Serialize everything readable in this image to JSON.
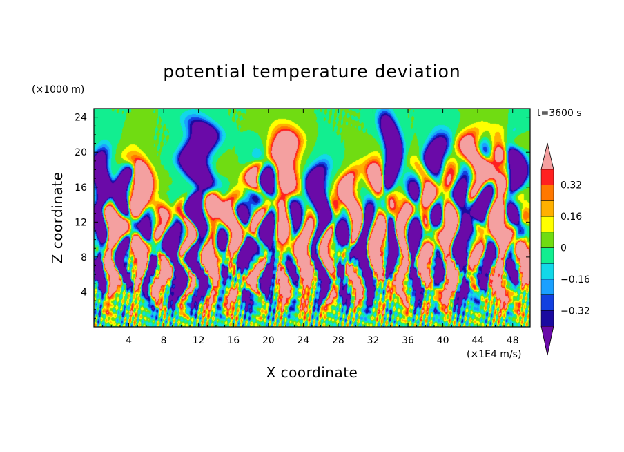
{
  "chart_data": {
    "type": "heatmap",
    "title": "potential temperature deviation",
    "xlabel": "X coordinate",
    "ylabel": "Z coordinate",
    "x_unit": "(×1E4 m/s)",
    "y_unit": "(×1000 m)",
    "time_label": "t=3600 s",
    "xlim": [
      0,
      50
    ],
    "ylim": [
      0,
      25
    ],
    "x_ticks": [
      4,
      8,
      12,
      16,
      20,
      24,
      28,
      32,
      36,
      40,
      44,
      48
    ],
    "y_ticks": [
      4,
      8,
      12,
      16,
      20,
      24
    ],
    "x_tick_labels": [
      "4",
      "8",
      "12",
      "16",
      "20",
      "24",
      "28",
      "32",
      "36",
      "40",
      "44",
      "48"
    ],
    "y_tick_labels": [
      "4",
      "8",
      "12",
      "16",
      "20",
      "24"
    ],
    "colorbar": {
      "levels": [
        -0.4,
        -0.32,
        -0.24,
        -0.16,
        -0.08,
        0,
        0.08,
        0.16,
        0.24,
        0.32,
        0.4
      ],
      "tick_values": [
        0.32,
        0.16,
        0,
        -0.16,
        -0.32
      ],
      "tick_labels": [
        "0.32",
        "0.16",
        "0",
        "−0.16",
        "−0.32"
      ],
      "colors": [
        "#6a0aa8",
        "#1a0aa0",
        "#1240e0",
        "#1aa0ff",
        "#12d8e8",
        "#12ee90",
        "#70dc12",
        "#ffff00",
        "#ffb000",
        "#ff7800",
        "#ff2020",
        "#f4a0a0"
      ],
      "extend": "both"
    }
  }
}
